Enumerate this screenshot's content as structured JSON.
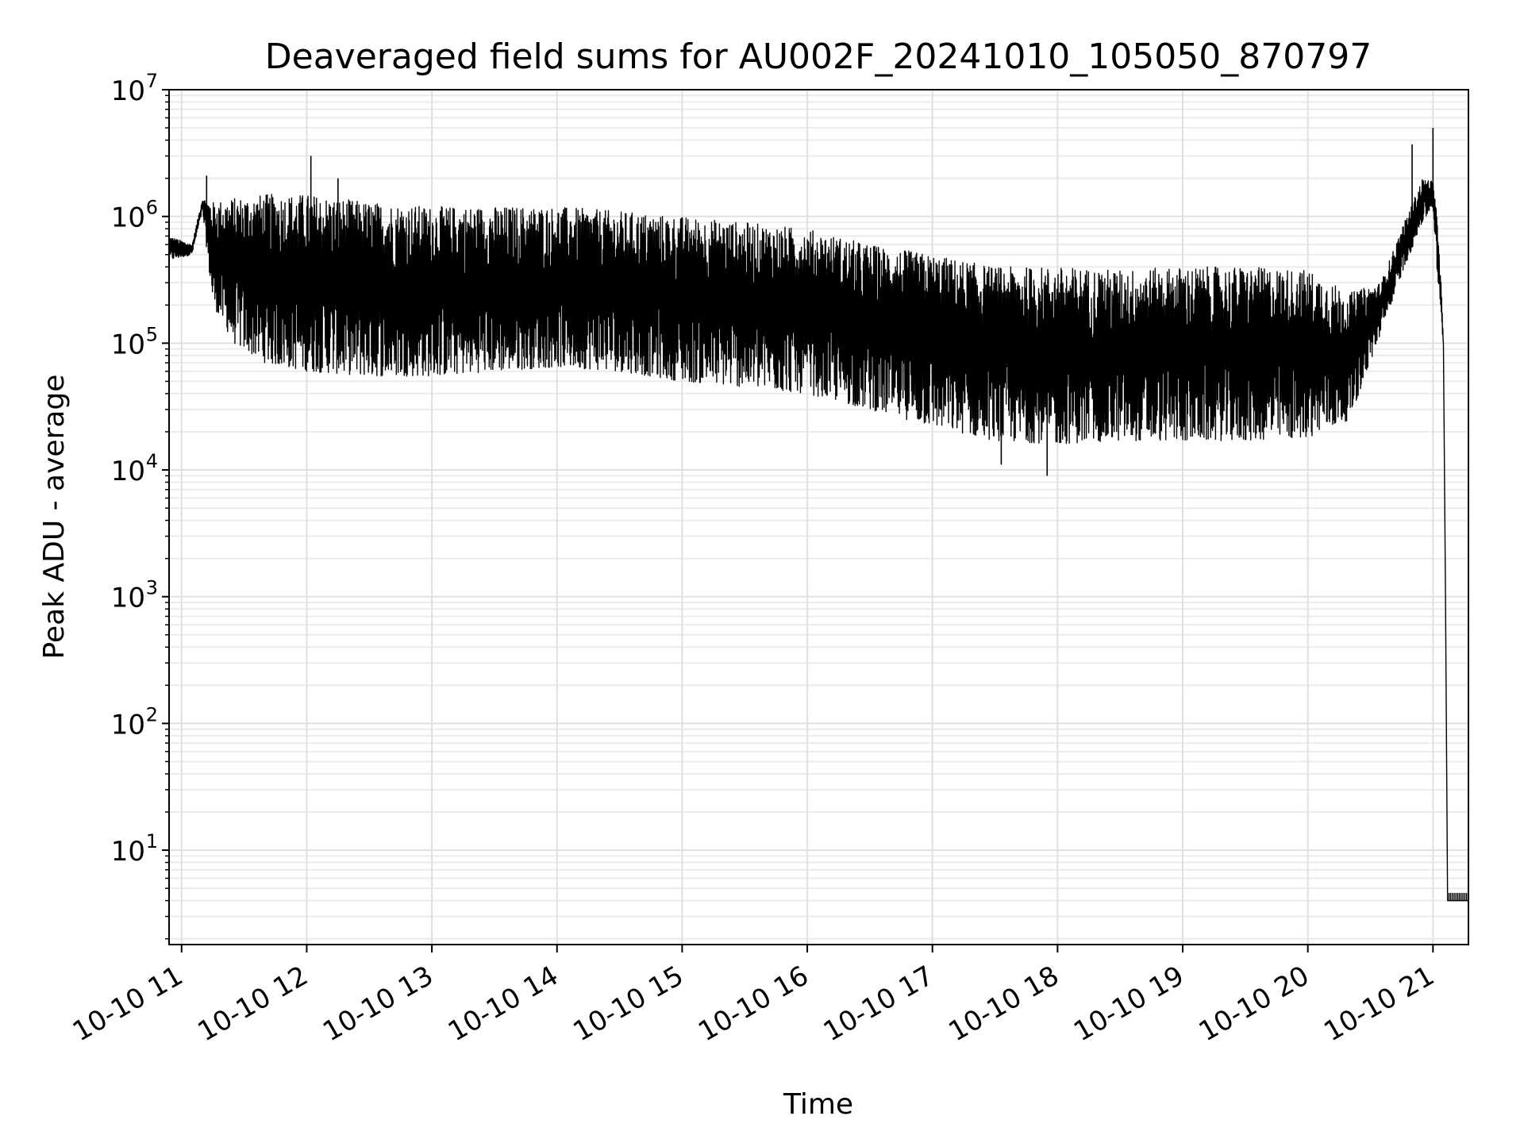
{
  "chart_data": {
    "type": "line",
    "title": "Deaveraged field sums for AU002F_20241010_105050_870797",
    "xlabel": "Time",
    "ylabel": "Peak ADU - average",
    "yscale": "log",
    "ylim": [
      1.8,
      10000000
    ],
    "xlim": [
      "2024-10-10 10:54",
      "2024-10-10 21:17"
    ],
    "grid": true,
    "grid_minor": true,
    "line_color": "#000000",
    "x_ticks": [
      {
        "time": "2024-10-10 11:00",
        "label": "10-10 11"
      },
      {
        "time": "2024-10-10 12:00",
        "label": "10-10 12"
      },
      {
        "time": "2024-10-10 13:00",
        "label": "10-10 13"
      },
      {
        "time": "2024-10-10 14:00",
        "label": "10-10 14"
      },
      {
        "time": "2024-10-10 15:00",
        "label": "10-10 15"
      },
      {
        "time": "2024-10-10 16:00",
        "label": "10-10 16"
      },
      {
        "time": "2024-10-10 17:00",
        "label": "10-10 17"
      },
      {
        "time": "2024-10-10 18:00",
        "label": "10-10 18"
      },
      {
        "time": "2024-10-10 19:00",
        "label": "10-10 19"
      },
      {
        "time": "2024-10-10 20:00",
        "label": "10-10 20"
      },
      {
        "time": "2024-10-10 21:00",
        "label": "10-10 21"
      }
    ],
    "y_ticks": [
      {
        "value": 10,
        "base": "10",
        "exp": "1"
      },
      {
        "value": 100,
        "base": "10",
        "exp": "2"
      },
      {
        "value": 1000,
        "base": "10",
        "exp": "3"
      },
      {
        "value": 10000,
        "base": "10",
        "exp": "4"
      },
      {
        "value": 100000,
        "base": "10",
        "exp": "5"
      },
      {
        "value": 1000000,
        "base": "10",
        "exp": "6"
      },
      {
        "value": 10000000,
        "base": "10",
        "exp": "7"
      }
    ],
    "envelope": {
      "description_of_values": "approximate upper and lower extent of the rapidly oscillating signal over time",
      "points": [
        {
          "time": "2024-10-10 10:54",
          "low": 450000,
          "high": 700000
        },
        {
          "time": "2024-10-10 11:05",
          "low": 500000,
          "high": 600000
        },
        {
          "time": "2024-10-10 11:10",
          "low": 1100000,
          "high": 1400000
        },
        {
          "time": "2024-10-10 11:15",
          "low": 200000,
          "high": 1300000
        },
        {
          "time": "2024-10-10 11:25",
          "low": 100000,
          "high": 1400000
        },
        {
          "time": "2024-10-10 11:40",
          "low": 70000,
          "high": 1500000
        },
        {
          "time": "2024-10-10 12:00",
          "low": 60000,
          "high": 1500000
        },
        {
          "time": "2024-10-10 12:30",
          "low": 55000,
          "high": 1300000
        },
        {
          "time": "2024-10-10 13:00",
          "low": 55000,
          "high": 1200000
        },
        {
          "time": "2024-10-10 13:30",
          "low": 60000,
          "high": 1200000
        },
        {
          "time": "2024-10-10 14:00",
          "low": 65000,
          "high": 1200000
        },
        {
          "time": "2024-10-10 14:30",
          "low": 60000,
          "high": 1100000
        },
        {
          "time": "2024-10-10 15:00",
          "low": 50000,
          "high": 1000000
        },
        {
          "time": "2024-10-10 15:30",
          "low": 45000,
          "high": 900000
        },
        {
          "time": "2024-10-10 16:00",
          "low": 40000,
          "high": 800000
        },
        {
          "time": "2024-10-10 16:30",
          "low": 30000,
          "high": 600000
        },
        {
          "time": "2024-10-10 17:00",
          "low": 22000,
          "high": 500000
        },
        {
          "time": "2024-10-10 17:30",
          "low": 17000,
          "high": 400000
        },
        {
          "time": "2024-10-10 18:00",
          "low": 16000,
          "high": 400000
        },
        {
          "time": "2024-10-10 18:30",
          "low": 17000,
          "high": 380000
        },
        {
          "time": "2024-10-10 19:00",
          "low": 17000,
          "high": 400000
        },
        {
          "time": "2024-10-10 19:30",
          "low": 17000,
          "high": 400000
        },
        {
          "time": "2024-10-10 20:00",
          "low": 18000,
          "high": 380000
        },
        {
          "time": "2024-10-10 20:20",
          "low": 25000,
          "high": 250000
        },
        {
          "time": "2024-10-10 20:35",
          "low": 120000,
          "high": 300000
        },
        {
          "time": "2024-10-10 20:45",
          "low": 350000,
          "high": 800000
        },
        {
          "time": "2024-10-10 20:55",
          "low": 900000,
          "high": 2000000
        },
        {
          "time": "2024-10-10 21:00",
          "low": 1200000,
          "high": 1900000
        },
        {
          "time": "2024-10-10 21:03",
          "low": 200000,
          "high": 700000
        },
        {
          "time": "2024-10-10 21:05",
          "low": 100000,
          "high": 100000
        },
        {
          "time": "2024-10-10 21:06",
          "low": 1000,
          "high": 1000
        },
        {
          "time": "2024-10-10 21:07",
          "low": 4,
          "high": 4
        },
        {
          "time": "2024-10-10 21:17",
          "low": 4,
          "high": 4
        }
      ]
    },
    "spikes": [
      {
        "time": "2024-10-10 11:12",
        "value": 2100000
      },
      {
        "time": "2024-10-10 12:02",
        "value": 3000000
      },
      {
        "time": "2024-10-10 12:15",
        "value": 2000000
      },
      {
        "time": "2024-10-10 17:33",
        "value": 11000
      },
      {
        "time": "2024-10-10 17:55",
        "value": 9000
      },
      {
        "time": "2024-10-10 20:50",
        "value": 3700000
      },
      {
        "time": "2024-10-10 21:00",
        "value": 5000000
      }
    ]
  }
}
